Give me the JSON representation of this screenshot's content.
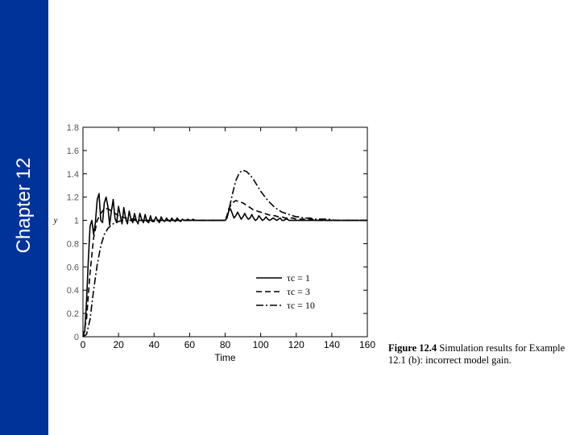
{
  "slide": {
    "chapter": "Chapter 12",
    "caption_lead": "Figure 12.4",
    "caption_rest": "  Simulation results for Example 12.1 (b): incorrect model gain.",
    "colors": {
      "sidebar": "#003399",
      "sidebar_text": "#ffffff"
    }
  },
  "chart_data": {
    "type": "line",
    "xlabel": "Time",
    "ylabel": "y",
    "xlim": [
      0,
      160
    ],
    "ylim": [
      0,
      1.8
    ],
    "xticks": [
      0,
      20,
      40,
      60,
      80,
      100,
      120,
      140,
      160
    ],
    "yticks": [
      0,
      0.2,
      0.4,
      0.6,
      0.8,
      1,
      1.2,
      1.4,
      1.6,
      1.8
    ],
    "ytick_labels": [
      "0",
      "0.2",
      "0.4",
      "0.6",
      "0.8",
      "1",
      "1.2",
      "1.4",
      "1.6",
      "1.8"
    ],
    "grid": false,
    "legend_position": "center-right",
    "series": [
      {
        "name": "τc = 1",
        "style": "solid",
        "x": [
          0,
          1,
          2,
          3,
          4,
          5,
          6,
          7,
          8,
          9,
          10,
          11,
          12,
          13,
          14,
          15,
          16,
          17,
          18,
          19,
          20,
          21,
          22,
          23,
          24,
          25,
          26,
          27,
          28,
          29,
          30,
          31,
          32,
          33,
          34,
          35,
          36,
          37,
          38,
          39,
          40,
          41,
          42,
          43,
          44,
          45,
          46,
          47,
          48,
          49,
          50,
          51,
          52,
          53,
          54,
          55,
          56,
          57,
          58,
          59,
          60,
          61,
          62,
          63,
          64,
          65,
          66,
          67,
          68,
          69,
          70,
          71,
          72,
          73,
          74,
          75,
          76,
          77,
          78,
          79,
          80,
          81,
          82,
          83,
          84,
          85,
          86,
          87,
          88,
          89,
          90,
          91,
          92,
          93,
          94,
          95,
          96,
          97,
          98,
          99,
          100,
          101,
          102,
          103,
          104,
          105,
          106,
          107,
          108,
          109,
          110,
          111,
          112,
          113,
          114,
          115,
          116,
          117,
          118,
          119,
          120,
          121,
          122,
          123,
          124,
          125,
          126,
          127,
          128,
          129,
          130,
          131,
          132,
          133,
          134,
          135,
          136,
          137,
          138,
          139,
          140,
          141,
          142,
          143,
          144,
          145,
          146,
          147,
          148,
          149,
          150,
          151,
          152,
          153,
          154,
          155,
          156,
          157,
          158,
          159,
          160
        ],
        "y": [
          0,
          0.05,
          0.3,
          0.65,
          0.95,
          1.0,
          0.88,
          0.98,
          1.18,
          1.23,
          1.0,
          0.98,
          1.15,
          1.2,
          1.12,
          0.96,
          1.08,
          1.18,
          1.02,
          0.98,
          1.12,
          1.04,
          0.97,
          1.11,
          1.02,
          0.97,
          1.08,
          1.01,
          0.98,
          1.06,
          1.0,
          0.97,
          1.06,
          1.01,
          0.98,
          1.05,
          0.99,
          0.98,
          1.04,
          0.99,
          0.99,
          1.03,
          1.0,
          0.98,
          1.03,
          1.0,
          0.99,
          1.02,
          1.0,
          0.99,
          1.02,
          1.0,
          0.99,
          1.02,
          1.0,
          0.99,
          1.01,
          1.0,
          1.0,
          1.01,
          1.0,
          1.0,
          1.01,
          1.0,
          1.0,
          1.0,
          1.0,
          1.0,
          1.0,
          1.0,
          1.0,
          1.0,
          1.0,
          1.0,
          1.0,
          1.0,
          1.0,
          1.0,
          1.0,
          1.0,
          1.0,
          1.02,
          1.08,
          1.1,
          1.06,
          1.02,
          1.04,
          1.07,
          1.04,
          1.01,
          1.03,
          1.06,
          1.03,
          1.01,
          1.02,
          1.05,
          1.02,
          1.0,
          1.01,
          1.04,
          1.02,
          1.0,
          1.01,
          1.03,
          1.01,
          1.0,
          1.01,
          1.02,
          1.01,
          1.0,
          1.01,
          1.02,
          1.0,
          1.0,
          1.01,
          1.01,
          1.0,
          1.0,
          1.0,
          1.0,
          1.0,
          1.0,
          1.0,
          1.0,
          1.0,
          1.0,
          1.0,
          1.0,
          1.0,
          1.0,
          1.0,
          1.0,
          1.0,
          1.0,
          1.0,
          1.0,
          1.0,
          1.0,
          1.0,
          1.0,
          1.0,
          1.0,
          1.0,
          1.0,
          1.0,
          1.0,
          1.0,
          1.0,
          1.0,
          1.0,
          1.0,
          1.0,
          1.0,
          1.0,
          1.0,
          1.0,
          1.0,
          1.0,
          1.0,
          1.0,
          1.0
        ]
      },
      {
        "name": "τc = 3",
        "style": "dashed",
        "x": [
          0,
          2,
          4,
          6,
          8,
          10,
          12,
          14,
          16,
          18,
          20,
          22,
          24,
          26,
          28,
          30,
          32,
          34,
          36,
          38,
          40,
          42,
          44,
          46,
          48,
          50,
          55,
          60,
          65,
          70,
          75,
          80,
          81,
          82,
          84,
          86,
          88,
          90,
          92,
          94,
          96,
          98,
          100,
          102,
          104,
          106,
          108,
          110,
          112,
          114,
          116,
          118,
          120,
          124,
          128,
          132,
          136,
          140,
          145,
          150,
          155,
          160
        ],
        "y": [
          0,
          0.15,
          0.55,
          0.85,
          1.0,
          1.06,
          1.1,
          1.1,
          1.08,
          1.06,
          1.04,
          1.03,
          1.02,
          1.02,
          1.01,
          1.01,
          1.0,
          1.0,
          1.0,
          1.0,
          1.0,
          1.0,
          1.0,
          1.0,
          1.0,
          1.0,
          1.0,
          1.0,
          1.0,
          1.0,
          1.0,
          1.0,
          1.04,
          1.1,
          1.15,
          1.17,
          1.16,
          1.15,
          1.13,
          1.11,
          1.09,
          1.08,
          1.07,
          1.06,
          1.05,
          1.04,
          1.04,
          1.03,
          1.03,
          1.02,
          1.02,
          1.02,
          1.01,
          1.01,
          1.01,
          1.0,
          1.0,
          1.0,
          1.0,
          1.0,
          1.0,
          1.0
        ]
      },
      {
        "name": "τc = 10",
        "style": "dashdot",
        "x": [
          0,
          2,
          4,
          6,
          8,
          10,
          12,
          14,
          16,
          18,
          20,
          22,
          24,
          26,
          28,
          30,
          32,
          34,
          36,
          38,
          40,
          45,
          50,
          55,
          60,
          65,
          70,
          75,
          80,
          81,
          82,
          84,
          86,
          88,
          90,
          92,
          94,
          96,
          98,
          100,
          102,
          104,
          106,
          108,
          110,
          112,
          114,
          116,
          118,
          120,
          122,
          124,
          126,
          128,
          130,
          134,
          138,
          142,
          146,
          150,
          155,
          160
        ],
        "y": [
          0,
          0.02,
          0.15,
          0.4,
          0.62,
          0.78,
          0.88,
          0.93,
          0.96,
          0.98,
          0.99,
          1.0,
          1.0,
          1.0,
          1.0,
          1.0,
          1.0,
          1.0,
          1.0,
          1.0,
          1.0,
          1.0,
          1.0,
          1.0,
          1.0,
          1.0,
          1.0,
          1.0,
          1.0,
          1.02,
          1.08,
          1.22,
          1.34,
          1.41,
          1.43,
          1.42,
          1.39,
          1.35,
          1.3,
          1.25,
          1.21,
          1.17,
          1.14,
          1.11,
          1.09,
          1.07,
          1.06,
          1.05,
          1.04,
          1.03,
          1.03,
          1.02,
          1.02,
          1.02,
          1.01,
          1.01,
          1.01,
          1.0,
          1.0,
          1.0,
          1.0,
          1.0
        ]
      }
    ]
  }
}
